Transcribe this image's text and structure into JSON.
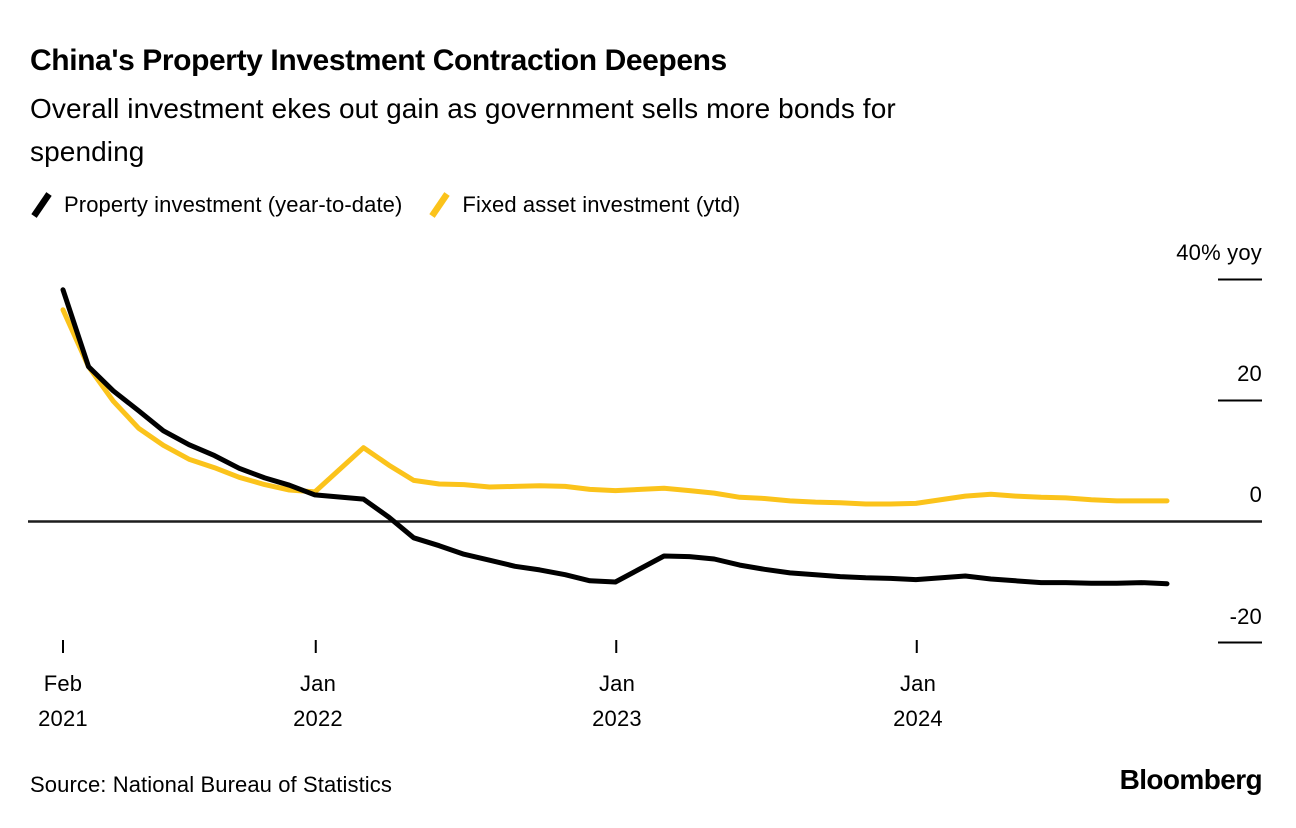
{
  "header": {
    "title": "China's Property Investment Contraction Deepens",
    "subtitle_line1": "Overall investment ekes out gain as government sells more bonds for",
    "subtitle_line2": "spending"
  },
  "legend": {
    "items": [
      {
        "label": "Property investment (year-to-date)",
        "color": "#000000"
      },
      {
        "label": "Fixed asset investment (ytd)",
        "color": "#FBC31B"
      }
    ]
  },
  "chart_data": {
    "type": "line",
    "title": "China's Property Investment Contraction Deepens",
    "subtitle": "Overall investment ekes out gain as government sells more bonds for spending",
    "unit": "% yoy",
    "xlabel": "",
    "ylabel": "40% yoy",
    "ylim": [
      -20,
      40
    ],
    "grid": "zero-baseline-only",
    "legend_position": "top",
    "x": [
      "2021-02",
      "2021-03",
      "2021-04",
      "2021-05",
      "2021-06",
      "2021-07",
      "2021-08",
      "2021-09",
      "2021-10",
      "2021-11",
      "2021-12",
      "2022-02",
      "2022-03",
      "2022-04",
      "2022-05",
      "2022-06",
      "2022-07",
      "2022-08",
      "2022-09",
      "2022-10",
      "2022-11",
      "2022-12",
      "2023-02",
      "2023-03",
      "2023-04",
      "2023-05",
      "2023-06",
      "2023-07",
      "2023-08",
      "2023-09",
      "2023-10",
      "2023-11",
      "2023-12",
      "2024-02",
      "2024-03",
      "2024-04",
      "2024-05",
      "2024-06",
      "2024-07",
      "2024-08",
      "2024-09",
      "2024-10"
    ],
    "series": [
      {
        "name": "Property investment (year-to-date)",
        "color": "#000000",
        "values": [
          38.3,
          25.6,
          21.6,
          18.3,
          15.0,
          12.7,
          10.9,
          8.8,
          7.2,
          6.0,
          4.4,
          3.7,
          0.7,
          -2.7,
          -4.0,
          -5.4,
          -6.4,
          -7.4,
          -8.0,
          -8.8,
          -9.8,
          -10.0,
          -5.7,
          -5.8,
          -6.2,
          -7.2,
          -7.9,
          -8.5,
          -8.8,
          -9.1,
          -9.3,
          -9.4,
          -9.6,
          -9.0,
          -9.5,
          -9.8,
          -10.1,
          -10.1,
          -10.2,
          -10.2,
          -10.1,
          -10.3
        ]
      },
      {
        "name": "Fixed asset investment (ytd)",
        "color": "#FBC31B",
        "values": [
          35.0,
          25.6,
          19.9,
          15.4,
          12.6,
          10.3,
          8.9,
          7.3,
          6.1,
          5.2,
          4.9,
          12.2,
          9.3,
          6.8,
          6.2,
          6.1,
          5.7,
          5.8,
          5.9,
          5.8,
          5.3,
          5.1,
          5.5,
          5.1,
          4.7,
          4.0,
          3.8,
          3.4,
          3.2,
          3.1,
          2.9,
          2.9,
          3.0,
          4.2,
          4.5,
          4.2,
          4.0,
          3.9,
          3.6,
          3.4,
          3.4,
          3.4
        ]
      }
    ],
    "y_ticks": [
      {
        "label": "40% yoy",
        "value": 40
      },
      {
        "label": "20",
        "value": 20
      },
      {
        "label": "0",
        "value": 0
      },
      {
        "label": "-20",
        "value": -20
      }
    ],
    "x_ticks": [
      {
        "month": "Feb",
        "year": "2021"
      },
      {
        "month": "Jan",
        "year": "2022"
      },
      {
        "month": "Jan",
        "year": "2023"
      },
      {
        "month": "Jan",
        "year": "2024"
      }
    ]
  },
  "footer": {
    "source": "Source: National Bureau of Statistics",
    "brand": "Bloomberg"
  }
}
